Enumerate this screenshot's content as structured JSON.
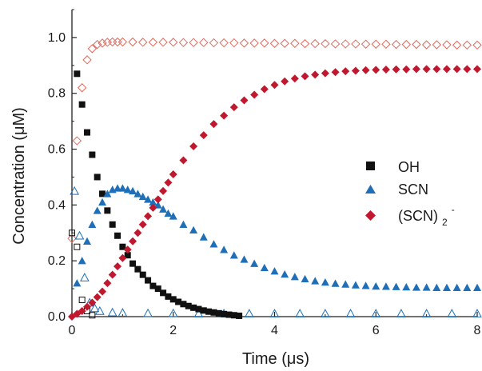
{
  "chart_data": {
    "type": "scatter",
    "title": "",
    "xlabel": "Time (μs)",
    "ylabel": "Concentration (μM)",
    "xlim": [
      0,
      8
    ],
    "ylim": [
      0,
      1.1
    ],
    "x_ticks": [
      "0",
      "2",
      "4",
      "6",
      "8"
    ],
    "y_ticks": [
      "0.0",
      "0.2",
      "0.4",
      "0.6",
      "0.8",
      "1.0"
    ],
    "grid": false,
    "legend_position": "right-center",
    "legend": [
      {
        "label": "OH",
        "marker": "square",
        "color": "#111111"
      },
      {
        "label": "SCN",
        "marker": "triangle",
        "color": "#1f6fb8"
      },
      {
        "label": "(SCN)",
        "subscript": "2",
        "superscript": "-",
        "marker": "diamond",
        "color": "#c0182e"
      }
    ],
    "series": [
      {
        "name": "OH",
        "marker": "square",
        "fill": "filled",
        "color": "#111111",
        "points": [
          [
            0.1,
            0.87
          ],
          [
            0.2,
            0.76
          ],
          [
            0.3,
            0.66
          ],
          [
            0.4,
            0.58
          ],
          [
            0.5,
            0.5
          ],
          [
            0.6,
            0.44
          ],
          [
            0.7,
            0.38
          ],
          [
            0.8,
            0.33
          ],
          [
            0.9,
            0.29
          ],
          [
            1.0,
            0.25
          ],
          [
            1.1,
            0.22
          ],
          [
            1.2,
            0.19
          ],
          [
            1.3,
            0.17
          ],
          [
            1.4,
            0.15
          ],
          [
            1.5,
            0.13
          ],
          [
            1.6,
            0.11
          ],
          [
            1.7,
            0.1
          ],
          [
            1.8,
            0.085
          ],
          [
            1.9,
            0.072
          ],
          [
            2.0,
            0.062
          ],
          [
            2.1,
            0.053
          ],
          [
            2.2,
            0.045
          ],
          [
            2.3,
            0.038
          ],
          [
            2.4,
            0.032
          ],
          [
            2.5,
            0.027
          ],
          [
            2.6,
            0.022
          ],
          [
            2.7,
            0.018
          ],
          [
            2.8,
            0.015
          ],
          [
            2.9,
            0.012
          ],
          [
            3.0,
            0.009
          ],
          [
            3.1,
            0.007
          ],
          [
            3.2,
            0.005
          ],
          [
            3.3,
            0.003
          ]
        ]
      },
      {
        "name": "SCN",
        "marker": "triangle",
        "fill": "filled",
        "color": "#1f6fb8",
        "points": [
          [
            0.1,
            0.12
          ],
          [
            0.2,
            0.2
          ],
          [
            0.3,
            0.27
          ],
          [
            0.4,
            0.33
          ],
          [
            0.5,
            0.38
          ],
          [
            0.6,
            0.41
          ],
          [
            0.7,
            0.44
          ],
          [
            0.8,
            0.455
          ],
          [
            0.9,
            0.46
          ],
          [
            1.0,
            0.46
          ],
          [
            1.1,
            0.455
          ],
          [
            1.2,
            0.45
          ],
          [
            1.3,
            0.44
          ],
          [
            1.4,
            0.43
          ],
          [
            1.5,
            0.42
          ],
          [
            1.6,
            0.41
          ],
          [
            1.7,
            0.4
          ],
          [
            1.8,
            0.385
          ],
          [
            1.9,
            0.37
          ],
          [
            2.0,
            0.36
          ],
          [
            2.2,
            0.33
          ],
          [
            2.4,
            0.31
          ],
          [
            2.6,
            0.285
          ],
          [
            2.8,
            0.26
          ],
          [
            3.0,
            0.24
          ],
          [
            3.2,
            0.22
          ],
          [
            3.4,
            0.205
          ],
          [
            3.6,
            0.19
          ],
          [
            3.8,
            0.175
          ],
          [
            4.0,
            0.163
          ],
          [
            4.2,
            0.152
          ],
          [
            4.4,
            0.143
          ],
          [
            4.6,
            0.135
          ],
          [
            4.8,
            0.128
          ],
          [
            5.0,
            0.123
          ],
          [
            5.2,
            0.119
          ],
          [
            5.4,
            0.116
          ],
          [
            5.6,
            0.113
          ],
          [
            5.8,
            0.111
          ],
          [
            6.0,
            0.109
          ],
          [
            6.2,
            0.108
          ],
          [
            6.4,
            0.107
          ],
          [
            6.6,
            0.106
          ],
          [
            6.8,
            0.105
          ],
          [
            7.0,
            0.105
          ],
          [
            7.2,
            0.104
          ],
          [
            7.4,
            0.104
          ],
          [
            7.6,
            0.104
          ],
          [
            7.8,
            0.104
          ],
          [
            8.0,
            0.104
          ]
        ]
      },
      {
        "name": "(SCN)2-",
        "marker": "diamond",
        "fill": "filled",
        "color": "#c0182e",
        "points": [
          [
            0.0,
            0.0
          ],
          [
            0.1,
            0.01
          ],
          [
            0.2,
            0.02
          ],
          [
            0.3,
            0.035
          ],
          [
            0.4,
            0.05
          ],
          [
            0.5,
            0.07
          ],
          [
            0.6,
            0.09
          ],
          [
            0.7,
            0.12
          ],
          [
            0.8,
            0.15
          ],
          [
            0.9,
            0.18
          ],
          [
            1.0,
            0.21
          ],
          [
            1.1,
            0.24
          ],
          [
            1.2,
            0.27
          ],
          [
            1.3,
            0.3
          ],
          [
            1.4,
            0.33
          ],
          [
            1.5,
            0.36
          ],
          [
            1.6,
            0.39
          ],
          [
            1.7,
            0.42
          ],
          [
            1.8,
            0.45
          ],
          [
            1.9,
            0.48
          ],
          [
            2.0,
            0.51
          ],
          [
            2.2,
            0.56
          ],
          [
            2.4,
            0.61
          ],
          [
            2.6,
            0.65
          ],
          [
            2.8,
            0.69
          ],
          [
            3.0,
            0.72
          ],
          [
            3.2,
            0.75
          ],
          [
            3.4,
            0.775
          ],
          [
            3.6,
            0.795
          ],
          [
            3.8,
            0.815
          ],
          [
            4.0,
            0.83
          ],
          [
            4.2,
            0.843
          ],
          [
            4.4,
            0.853
          ],
          [
            4.6,
            0.861
          ],
          [
            4.8,
            0.867
          ],
          [
            5.0,
            0.872
          ],
          [
            5.2,
            0.876
          ],
          [
            5.4,
            0.879
          ],
          [
            5.6,
            0.881
          ],
          [
            5.8,
            0.883
          ],
          [
            6.0,
            0.884
          ],
          [
            6.2,
            0.885
          ],
          [
            6.4,
            0.886
          ],
          [
            6.6,
            0.886
          ],
          [
            6.8,
            0.887
          ],
          [
            7.0,
            0.887
          ],
          [
            7.2,
            0.887
          ],
          [
            7.4,
            0.887
          ],
          [
            7.6,
            0.887
          ],
          [
            7.8,
            0.887
          ],
          [
            8.0,
            0.887
          ]
        ]
      },
      {
        "name": "",
        "marker": "square",
        "fill": "open",
        "color": "#111111",
        "points": [
          [
            0.0,
            0.3
          ],
          [
            0.1,
            0.25
          ],
          [
            0.2,
            0.06
          ],
          [
            0.3,
            0.02
          ],
          [
            0.4,
            0.005
          ]
        ]
      },
      {
        "name": "",
        "marker": "triangle",
        "fill": "open",
        "color": "#1f6fb8",
        "points": [
          [
            0.05,
            0.45
          ],
          [
            0.15,
            0.29
          ],
          [
            0.25,
            0.14
          ],
          [
            0.35,
            0.05
          ],
          [
            0.45,
            0.03
          ],
          [
            0.55,
            0.02
          ],
          [
            0.8,
            0.015
          ],
          [
            1.0,
            0.014
          ],
          [
            1.5,
            0.012
          ],
          [
            2.0,
            0.012
          ],
          [
            2.5,
            0.011
          ],
          [
            3.0,
            0.011
          ],
          [
            3.5,
            0.011
          ],
          [
            4.0,
            0.011
          ],
          [
            4.5,
            0.011
          ],
          [
            5.0,
            0.011
          ],
          [
            5.5,
            0.011
          ],
          [
            6.0,
            0.011
          ],
          [
            6.5,
            0.011
          ],
          [
            7.0,
            0.011
          ],
          [
            7.5,
            0.011
          ],
          [
            8.0,
            0.011
          ]
        ]
      },
      {
        "name": "",
        "marker": "diamond",
        "fill": "open",
        "color": "#e06a5e",
        "points": [
          [
            0.0,
            0.28
          ],
          [
            0.1,
            0.63
          ],
          [
            0.2,
            0.82
          ],
          [
            0.3,
            0.92
          ],
          [
            0.4,
            0.96
          ],
          [
            0.5,
            0.975
          ],
          [
            0.6,
            0.98
          ],
          [
            0.7,
            0.983
          ],
          [
            0.8,
            0.984
          ],
          [
            0.9,
            0.984
          ],
          [
            1.0,
            0.984
          ],
          [
            1.2,
            0.984
          ],
          [
            1.4,
            0.983
          ],
          [
            1.6,
            0.983
          ],
          [
            1.8,
            0.983
          ],
          [
            2.0,
            0.983
          ],
          [
            2.2,
            0.982
          ],
          [
            2.4,
            0.982
          ],
          [
            2.6,
            0.982
          ],
          [
            2.8,
            0.981
          ],
          [
            3.0,
            0.981
          ],
          [
            3.2,
            0.981
          ],
          [
            3.4,
            0.98
          ],
          [
            3.6,
            0.98
          ],
          [
            3.8,
            0.98
          ],
          [
            4.0,
            0.979
          ],
          [
            4.2,
            0.979
          ],
          [
            4.4,
            0.979
          ],
          [
            4.6,
            0.978
          ],
          [
            4.8,
            0.978
          ],
          [
            5.0,
            0.978
          ],
          [
            5.2,
            0.977
          ],
          [
            5.4,
            0.977
          ],
          [
            5.6,
            0.977
          ],
          [
            5.8,
            0.976
          ],
          [
            6.0,
            0.976
          ],
          [
            6.2,
            0.976
          ],
          [
            6.4,
            0.975
          ],
          [
            6.6,
            0.975
          ],
          [
            6.8,
            0.975
          ],
          [
            7.0,
            0.974
          ],
          [
            7.2,
            0.974
          ],
          [
            7.4,
            0.974
          ],
          [
            7.6,
            0.973
          ],
          [
            7.8,
            0.973
          ],
          [
            8.0,
            0.973
          ]
        ]
      }
    ]
  }
}
